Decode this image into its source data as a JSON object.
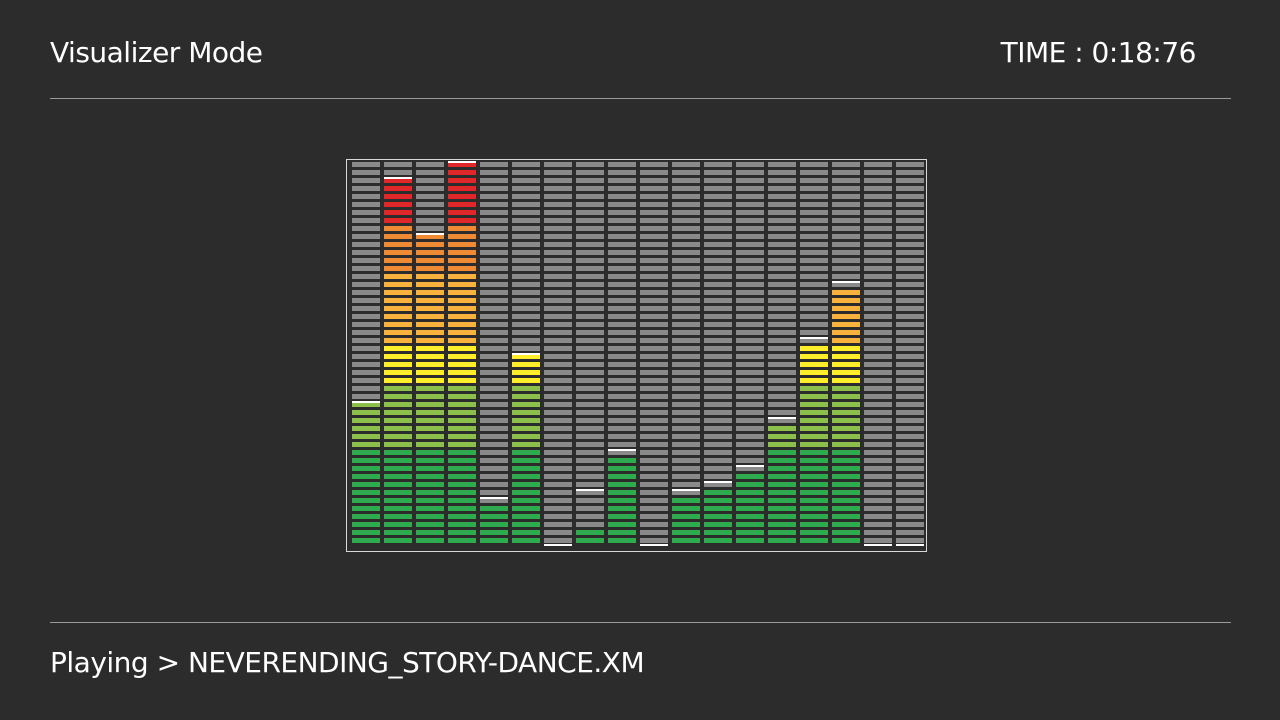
{
  "header": {
    "title": "Visualizer Mode",
    "time_label": "TIME",
    "time_separator": " : ",
    "time_value": "0:18:76"
  },
  "footer": {
    "status": "Playing",
    "arrow": " > ",
    "track": "NEVERENDING_STORY-DANCE.XM"
  },
  "colors": {
    "background": "#2c2c2c",
    "segment_off": "#8a8a8a",
    "peak": "#ffffff",
    "green": "#2faa4f",
    "light_green": "#8cc04a",
    "yellow": "#ffec2a",
    "light_orange": "#f7b23c",
    "orange": "#ef8a35",
    "red": "#e0282a"
  },
  "chart_data": {
    "type": "bar",
    "segments_per_band": 48,
    "levels": [
      18,
      46,
      39,
      48,
      5,
      24,
      0,
      2,
      11,
      0,
      6,
      7,
      9,
      15,
      25,
      32,
      0,
      0
    ],
    "peaks": [
      18,
      46,
      39,
      48,
      6,
      24,
      0,
      7,
      12,
      0,
      7,
      8,
      10,
      16,
      26,
      33,
      0,
      0
    ]
  }
}
